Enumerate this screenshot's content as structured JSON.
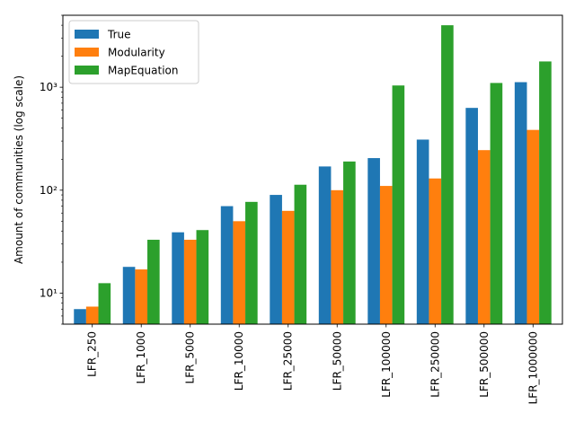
{
  "chart_data": {
    "type": "bar",
    "yscale": "log",
    "ylabel": "Amount of communities (log scale)",
    "xlabel": "",
    "title": "",
    "ylim": [
      5,
      5000
    ],
    "y_major_ticks": [
      {
        "value": 10,
        "label": "10¹"
      },
      {
        "value": 100,
        "label": "10²"
      },
      {
        "value": 1000,
        "label": "10³"
      }
    ],
    "categories": [
      "LFR_250",
      "LFR_1000",
      "LFR_5000",
      "LFR_10000",
      "LFR_25000",
      "LFR_50000",
      "LFR_100000",
      "LFR_250000",
      "LFR_500000",
      "LFR_1000000"
    ],
    "series": [
      {
        "name": "True",
        "color": "#1f77b4",
        "values": [
          7,
          18,
          39,
          70,
          90,
          170,
          205,
          310,
          630,
          1120
        ]
      },
      {
        "name": "Modularity",
        "color": "#ff7f0e",
        "values": [
          7.4,
          17,
          33,
          50,
          63,
          100,
          110,
          130,
          245,
          385
        ]
      },
      {
        "name": "MapEquation",
        "color": "#2ca02c",
        "values": [
          12.5,
          33,
          41,
          77,
          113,
          190,
          1040,
          4000,
          1100,
          1780
        ]
      }
    ],
    "legend": {
      "position": "top-left"
    },
    "grid": false
  }
}
